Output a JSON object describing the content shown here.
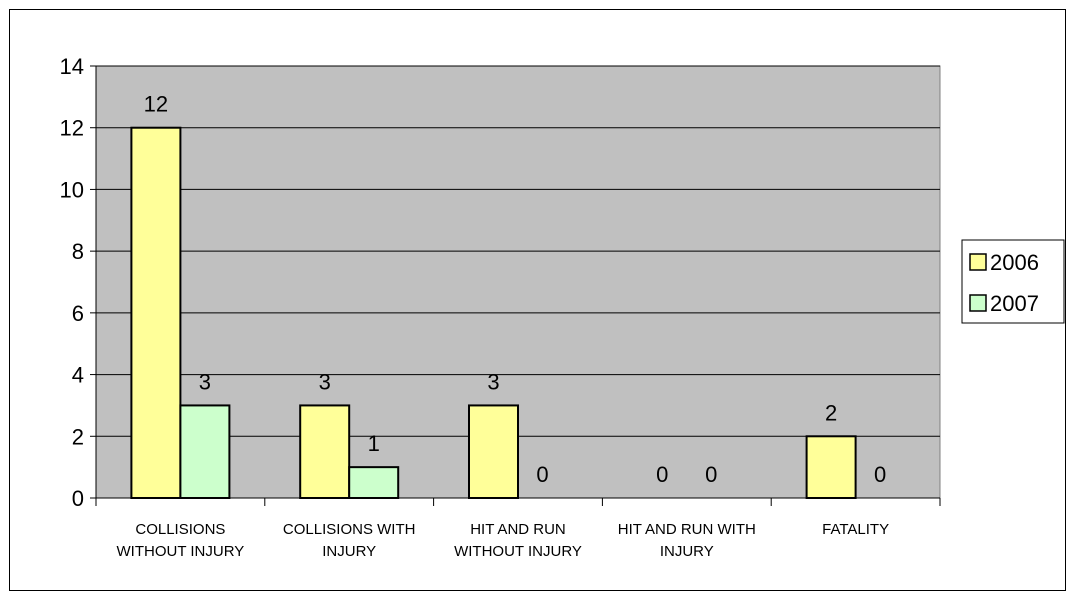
{
  "chart_data": {
    "type": "bar",
    "categories": [
      [
        "COLLISIONS",
        "WITHOUT INJURY"
      ],
      [
        "COLLISIONS WITH",
        "INJURY"
      ],
      [
        "HIT AND RUN",
        "WITHOUT INJURY"
      ],
      [
        "HIT AND RUN WITH",
        "INJURY"
      ],
      [
        "FATALITY"
      ]
    ],
    "series": [
      {
        "name": "2006",
        "values": [
          12,
          3,
          3,
          0,
          2
        ],
        "color": "#ffff99"
      },
      {
        "name": "2007",
        "values": [
          3,
          1,
          0,
          0,
          0
        ],
        "color": "#ccffcc"
      }
    ],
    "ylim": [
      0,
      14
    ],
    "yticks": [
      0,
      2,
      4,
      6,
      8,
      10,
      12,
      14
    ],
    "grid": true,
    "plot_background": "#c0c0c0",
    "legend": "right",
    "data_labels": true
  }
}
